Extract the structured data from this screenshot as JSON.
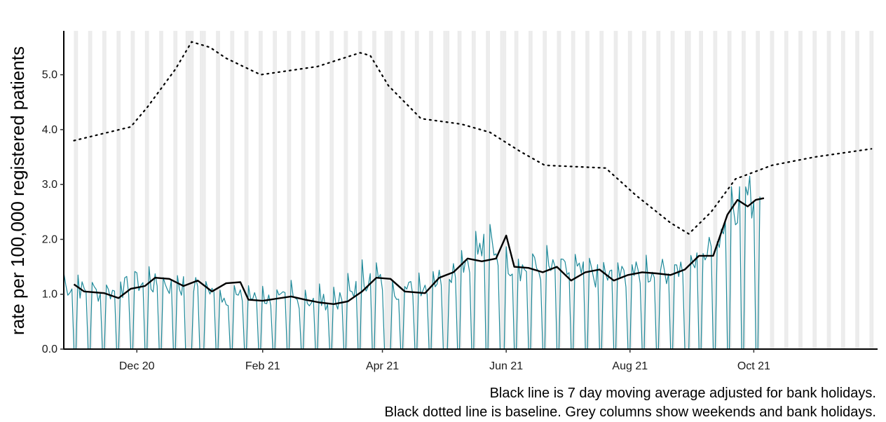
{
  "chart_data": {
    "type": "line",
    "title": "",
    "xlabel": "",
    "ylabel": "rate per 100,000 registered patients",
    "xlim": [
      "2020-10-26",
      "2021-12-01"
    ],
    "ylim": [
      0,
      5.8
    ],
    "yticks": [
      0.0,
      1.0,
      2.0,
      3.0,
      4.0,
      5.0
    ],
    "ytick_labels": [
      "0.0",
      "1.0",
      "2.0",
      "3.0",
      "4.0",
      "5.0"
    ],
    "xticks": [
      {
        "date": "2020-12-01",
        "label": "Dec 20"
      },
      {
        "date": "2021-02-01",
        "label": "Feb 21"
      },
      {
        "date": "2021-04-01",
        "label": "Apr 21"
      },
      {
        "date": "2021-06-01",
        "label": "Jun 21"
      },
      {
        "date": "2021-08-01",
        "label": "Aug 21"
      },
      {
        "date": "2021-10-01",
        "label": "Oct 21"
      }
    ],
    "grid": false,
    "weekend_shading": true,
    "bank_holidays": [
      "2020-12-25",
      "2020-12-28",
      "2021-01-01",
      "2021-04-02",
      "2021-04-05",
      "2021-05-03",
      "2021-05-31",
      "2021-08-30"
    ],
    "daily_series": {
      "start": "2020-10-26",
      "end": "2021-10-04",
      "weekday_anchors": [
        [
          "2020-10-26",
          1.15
        ],
        [
          "2020-11-15",
          1.0
        ],
        [
          "2020-12-01",
          1.2
        ],
        [
          "2020-12-18",
          1.15
        ],
        [
          "2021-01-01",
          1.15
        ],
        [
          "2021-01-10",
          0.95
        ],
        [
          "2021-02-10",
          0.9
        ],
        [
          "2021-03-10",
          0.85
        ],
        [
          "2021-03-25",
          1.3
        ],
        [
          "2021-04-10",
          1.05
        ],
        [
          "2021-04-25",
          1.2
        ],
        [
          "2021-05-10",
          1.6
        ],
        [
          "2021-05-25",
          1.9
        ],
        [
          "2021-06-05",
          1.5
        ],
        [
          "2021-07-01",
          1.4
        ],
        [
          "2021-07-20",
          1.3
        ],
        [
          "2021-08-15",
          1.4
        ],
        [
          "2021-09-01",
          1.5
        ],
        [
          "2021-09-12",
          1.9
        ],
        [
          "2021-09-20",
          2.7
        ],
        [
          "2021-10-04",
          2.8
        ]
      ],
      "weekend_value": 0.0
    },
    "moving_average": [
      [
        "2020-10-31",
        1.18
      ],
      [
        "2020-11-05",
        1.05
      ],
      [
        "2020-11-15",
        1.02
      ],
      [
        "2020-11-22",
        0.93
      ],
      [
        "2020-11-28",
        1.1
      ],
      [
        "2020-12-05",
        1.15
      ],
      [
        "2020-12-10",
        1.3
      ],
      [
        "2020-12-17",
        1.28
      ],
      [
        "2020-12-24",
        1.15
      ],
      [
        "2020-12-31",
        1.25
      ],
      [
        "2021-01-07",
        1.05
      ],
      [
        "2021-01-14",
        1.2
      ],
      [
        "2021-01-21",
        1.22
      ],
      [
        "2021-01-25",
        0.9
      ],
      [
        "2021-02-01",
        0.88
      ],
      [
        "2021-02-08",
        0.92
      ],
      [
        "2021-02-15",
        0.96
      ],
      [
        "2021-02-22",
        0.9
      ],
      [
        "2021-03-01",
        0.85
      ],
      [
        "2021-03-08",
        0.82
      ],
      [
        "2021-03-15",
        0.87
      ],
      [
        "2021-03-22",
        1.05
      ],
      [
        "2021-03-29",
        1.3
      ],
      [
        "2021-04-05",
        1.28
      ],
      [
        "2021-04-12",
        1.05
      ],
      [
        "2021-04-22",
        1.02
      ],
      [
        "2021-04-29",
        1.3
      ],
      [
        "2021-05-06",
        1.4
      ],
      [
        "2021-05-13",
        1.65
      ],
      [
        "2021-05-20",
        1.6
      ],
      [
        "2021-05-27",
        1.65
      ],
      [
        "2021-06-01",
        2.07
      ],
      [
        "2021-06-05",
        1.5
      ],
      [
        "2021-06-12",
        1.48
      ],
      [
        "2021-06-19",
        1.4
      ],
      [
        "2021-06-26",
        1.5
      ],
      [
        "2021-07-03",
        1.25
      ],
      [
        "2021-07-10",
        1.4
      ],
      [
        "2021-07-17",
        1.45
      ],
      [
        "2021-07-24",
        1.25
      ],
      [
        "2021-07-31",
        1.35
      ],
      [
        "2021-08-07",
        1.4
      ],
      [
        "2021-08-14",
        1.38
      ],
      [
        "2021-08-21",
        1.35
      ],
      [
        "2021-08-28",
        1.45
      ],
      [
        "2021-09-04",
        1.7
      ],
      [
        "2021-09-11",
        1.7
      ],
      [
        "2021-09-18",
        2.45
      ],
      [
        "2021-09-23",
        2.72
      ],
      [
        "2021-09-28",
        2.6
      ],
      [
        "2021-10-02",
        2.72
      ],
      [
        "2021-10-06",
        2.75
      ]
    ],
    "baseline": [
      [
        "2020-10-31",
        3.8
      ],
      [
        "2020-11-28",
        4.05
      ],
      [
        "2020-12-06",
        4.4
      ],
      [
        "2020-12-20",
        5.1
      ],
      [
        "2020-12-28",
        5.6
      ],
      [
        "2021-01-06",
        5.5
      ],
      [
        "2021-01-14",
        5.3
      ],
      [
        "2021-01-31",
        5.0
      ],
      [
        "2021-02-28",
        5.15
      ],
      [
        "2021-03-21",
        5.4
      ],
      [
        "2021-03-26",
        5.35
      ],
      [
        "2021-04-04",
        4.8
      ],
      [
        "2021-04-20",
        4.2
      ],
      [
        "2021-05-10",
        4.1
      ],
      [
        "2021-05-24",
        3.95
      ],
      [
        "2021-06-08",
        3.6
      ],
      [
        "2021-06-20",
        3.35
      ],
      [
        "2021-07-20",
        3.3
      ],
      [
        "2021-08-04",
        2.8
      ],
      [
        "2021-08-21",
        2.3
      ],
      [
        "2021-08-30",
        2.1
      ],
      [
        "2021-09-10",
        2.5
      ],
      [
        "2021-09-22",
        3.1
      ],
      [
        "2021-10-10",
        3.35
      ],
      [
        "2021-10-31",
        3.5
      ],
      [
        "2021-11-28",
        3.65
      ]
    ]
  },
  "caption": {
    "line1": "Black line is 7 day moving average adjusted for bank holidays.",
    "line2": "Black dotted line is baseline. Grey columns show weekends and bank holidays."
  }
}
